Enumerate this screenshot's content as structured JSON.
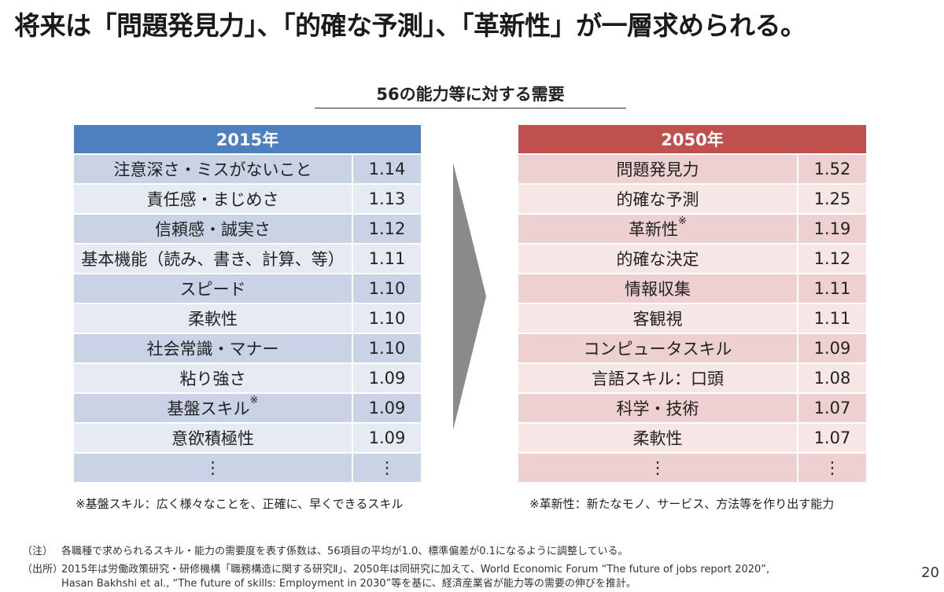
{
  "title": "将来は「問題発見力」、「的確な予測」、「革新性」が一層求められる。",
  "subtitle": "56の能力等に対する需要",
  "table2015": {
    "header": "2015年",
    "rows": [
      {
        "skill": "注意深さ・ミスがないこと",
        "value": "1.14"
      },
      {
        "skill": "責任感・まじめさ",
        "value": "1.13"
      },
      {
        "skill": "信頼感・誠実さ",
        "value": "1.12"
      },
      {
        "skill": "基本機能（読み、書き、計算、等）",
        "value": "1.11"
      },
      {
        "skill": "スピード",
        "value": "1.10"
      },
      {
        "skill": "柔軟性",
        "value": "1.10"
      },
      {
        "skill": "社会常識・マナー",
        "value": "1.10"
      },
      {
        "skill": "粘り強さ",
        "value": "1.09"
      },
      {
        "skill": "基盤スキル",
        "value": "1.09",
        "mark": "※"
      },
      {
        "skill": "意欲積極性",
        "value": "1.09"
      },
      {
        "skill": "⋮",
        "value": "⋮"
      }
    ],
    "footnote": "※基盤スキル：広く様々なことを、正確に、早くできるスキル"
  },
  "table2050": {
    "header": "2050年",
    "rows": [
      {
        "skill": "問題発見力",
        "value": "1.52"
      },
      {
        "skill": "的確な予測",
        "value": "1.25"
      },
      {
        "skill": "革新性",
        "value": "1.19",
        "mark": "※"
      },
      {
        "skill": "的確な決定",
        "value": "1.12"
      },
      {
        "skill": "情報収集",
        "value": "1.11"
      },
      {
        "skill": "客観視",
        "value": "1.11"
      },
      {
        "skill": "コンピュータスキル",
        "value": "1.09"
      },
      {
        "skill": "言語スキル：口頭",
        "value": "1.08"
      },
      {
        "skill": "科学・技術",
        "value": "1.07"
      },
      {
        "skill": "柔軟性",
        "value": "1.07"
      },
      {
        "skill": "⋮",
        "value": "⋮"
      }
    ],
    "footnote": "※革新性：新たなモノ、サービス、方法等を作り出す能力"
  },
  "notes": {
    "note_label": "（注）",
    "note_text": "各職種で求められるスキル・能力の需要度を表す係数は、56項目の平均が1.0、標準偏差が0.1になるように調整している。",
    "source_label": "（出所）",
    "source_line1": "2015年は労働政策研究・研修機構「職務構造に関する研究Ⅱ」、2050年は同研究に加えて、World Economic Forum “The future of jobs report 2020”,",
    "source_line2": "Hasan Bakhshi et al., “The future of skills: Employment in 2030”等を基に、経済産業省が能力等の需要の伸びを推計。"
  },
  "page_number": "20",
  "colors": {
    "header_2015": "#4e7fbe",
    "header_2050": "#c0504d",
    "arrow": "#8a8a8a"
  }
}
